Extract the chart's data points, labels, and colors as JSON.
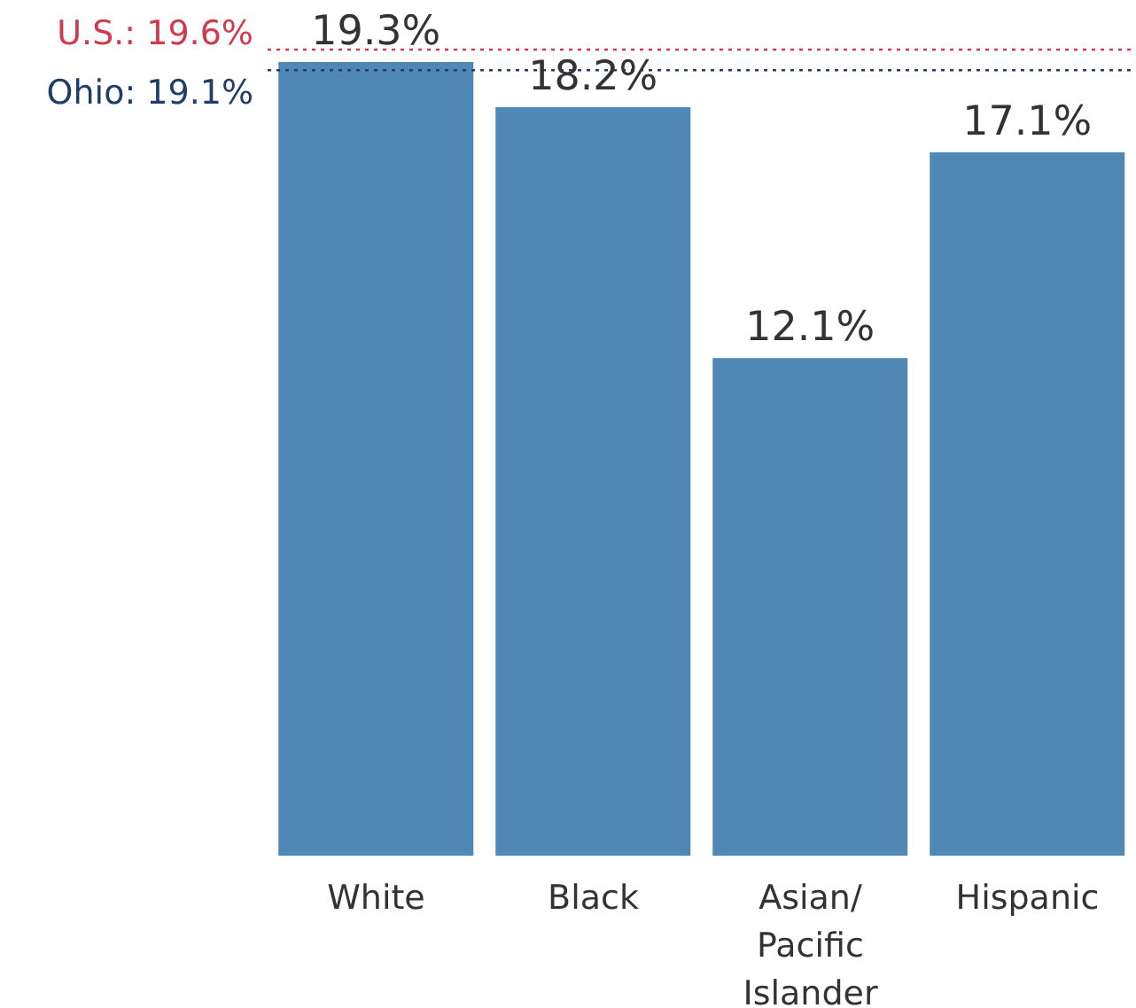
{
  "chart_data": {
    "type": "bar",
    "categories": [
      "White",
      "Black",
      "Asian/Pacific Islander",
      "Hispanic"
    ],
    "values": [
      19.3,
      18.2,
      12.1,
      17.1
    ],
    "value_labels": [
      "19.3%",
      "18.2%",
      "12.1%",
      "17.1%"
    ],
    "color": "#4f87b5",
    "grid": false,
    "legend": false,
    "ref_lines": [
      {
        "axis": "y",
        "value": 19.6,
        "label": "U.S.: 19.6%",
        "color": "#d13a4a",
        "line_style": "dotted"
      },
      {
        "axis": "y",
        "value": 19.1,
        "label": "Ohio: 19.1%",
        "color": "#1f3d6b",
        "line_style": "dotted"
      }
    ]
  }
}
